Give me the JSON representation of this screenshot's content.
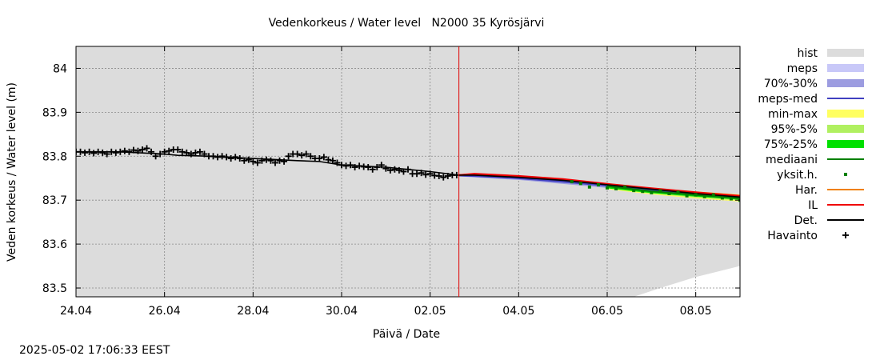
{
  "chart_data": {
    "type": "line",
    "title": "Vedenkorkeus / Water level   N2000 35 Kyrösjärvi",
    "xlabel": "Päivä / Date",
    "ylabel": "Veden korkeus / Water level (m)",
    "xlim_days": [
      0,
      15
    ],
    "ylim": [
      83.48,
      84.05
    ],
    "x_ticks": [
      {
        "day": 0,
        "label": "24.04"
      },
      {
        "day": 2,
        "label": "26.04"
      },
      {
        "day": 4,
        "label": "28.04"
      },
      {
        "day": 6,
        "label": "30.04"
      },
      {
        "day": 8,
        "label": "02.05"
      },
      {
        "day": 10,
        "label": "04.05"
      },
      {
        "day": 12,
        "label": "06.05"
      },
      {
        "day": 14,
        "label": "08.05"
      }
    ],
    "y_ticks": [
      {
        "value": 83.5,
        "label": "83.5"
      },
      {
        "value": 83.6,
        "label": "83.6"
      },
      {
        "value": 83.7,
        "label": "83.7"
      },
      {
        "value": 83.8,
        "label": "83.8"
      },
      {
        "value": 83.9,
        "label": "83.9"
      },
      {
        "value": 84.0,
        "label": "84"
      }
    ],
    "forecast_start_day": 8.65,
    "colors": {
      "hist": "#dcdcdc",
      "meps": "#c8c8f8",
      "p70_30": "#9c9ce0",
      "meps_med": "#4040c0",
      "min_max": "#ffff60",
      "p95_5": "#b0f060",
      "p75_25": "#00e000",
      "mediaani": "#008000",
      "yksit": "#008000",
      "har": "#f08000",
      "il": "#f00000",
      "det": "#000000",
      "havainto": "#000000",
      "now_line": "#e00000"
    },
    "legend": [
      {
        "key": "hist",
        "label": "hist",
        "style": "band"
      },
      {
        "key": "meps",
        "label": "meps",
        "style": "band"
      },
      {
        "key": "p70_30",
        "label": "70%-30%",
        "style": "band"
      },
      {
        "key": "meps_med",
        "label": "meps-med",
        "style": "line"
      },
      {
        "key": "min_max",
        "label": "min-max",
        "style": "band"
      },
      {
        "key": "p95_5",
        "label": "95%-5%",
        "style": "band"
      },
      {
        "key": "p75_25",
        "label": "75%-25%",
        "style": "band"
      },
      {
        "key": "mediaani",
        "label": "mediaani",
        "style": "line"
      },
      {
        "key": "yksit",
        "label": "yksit.h.",
        "style": "dot"
      },
      {
        "key": "har",
        "label": "Har.",
        "style": "line"
      },
      {
        "key": "il",
        "label": "IL",
        "style": "line"
      },
      {
        "key": "det",
        "label": "Det.",
        "style": "line"
      },
      {
        "key": "havainto",
        "label": "Havainto",
        "style": "plus"
      }
    ],
    "hist_lower_edge": [
      [
        0,
        83.48
      ],
      [
        12.6,
        83.48
      ],
      [
        13.2,
        83.5
      ],
      [
        14.0,
        83.525
      ],
      [
        15.0,
        83.55
      ]
    ],
    "series": [
      {
        "name": "Det.",
        "key": "det",
        "points": [
          [
            0,
            83.81
          ],
          [
            1,
            83.81
          ],
          [
            2,
            83.805
          ],
          [
            2.3,
            83.802
          ],
          [
            3,
            83.8
          ],
          [
            4,
            83.795
          ],
          [
            5,
            83.79
          ],
          [
            5.5,
            83.788
          ],
          [
            6,
            83.78
          ],
          [
            7,
            83.775
          ],
          [
            8,
            83.765
          ],
          [
            8.65,
            83.757
          ],
          [
            9,
            83.757
          ],
          [
            10,
            83.752
          ],
          [
            11,
            83.745
          ],
          [
            12,
            83.735
          ],
          [
            13,
            83.725
          ],
          [
            14,
            83.715
          ],
          [
            15,
            83.707
          ]
        ]
      },
      {
        "name": "IL",
        "key": "il",
        "points": [
          [
            8.65,
            83.757
          ],
          [
            9,
            83.76
          ],
          [
            10,
            83.755
          ],
          [
            11,
            83.748
          ],
          [
            12,
            83.737
          ],
          [
            13,
            83.727
          ],
          [
            14,
            83.718
          ],
          [
            15,
            83.71
          ]
        ]
      },
      {
        "name": "Har.",
        "key": "har",
        "points": [
          [
            8.65,
            83.757
          ],
          [
            9,
            83.759
          ],
          [
            10,
            83.753
          ],
          [
            11,
            83.746
          ],
          [
            12,
            83.736
          ],
          [
            13,
            83.726
          ],
          [
            14,
            83.716
          ],
          [
            15,
            83.708
          ]
        ]
      },
      {
        "name": "meps-med",
        "key": "meps_med",
        "points": [
          [
            8.65,
            83.756
          ],
          [
            9,
            83.755
          ],
          [
            10,
            83.75
          ],
          [
            11,
            83.742
          ],
          [
            12,
            83.733
          ],
          [
            13,
            83.723
          ],
          [
            14,
            83.714
          ],
          [
            15,
            83.706
          ]
        ]
      },
      {
        "name": "mediaani",
        "key": "mediaani",
        "points": [
          [
            12,
            83.732
          ],
          [
            13,
            83.72
          ],
          [
            14,
            83.712
          ],
          [
            15,
            83.704
          ]
        ]
      }
    ],
    "bands": [
      {
        "name": "70%-30%",
        "key": "p70_30",
        "upper": [
          [
            8.65,
            83.758
          ],
          [
            10,
            83.752
          ],
          [
            11,
            83.744
          ],
          [
            12,
            83.735
          ],
          [
            13,
            83.724
          ]
        ],
        "lower": [
          [
            8.65,
            83.754
          ],
          [
            10,
            83.746
          ],
          [
            11,
            83.737
          ],
          [
            12,
            83.728
          ],
          [
            13,
            83.718
          ]
        ]
      },
      {
        "name": "min-max",
        "key": "min_max",
        "upper": [
          [
            12,
            83.735
          ],
          [
            13,
            83.727
          ],
          [
            14,
            83.72
          ],
          [
            15,
            83.713
          ]
        ],
        "lower": [
          [
            12,
            83.725
          ],
          [
            13,
            83.713
          ],
          [
            14,
            83.704
          ],
          [
            15,
            83.697
          ]
        ]
      },
      {
        "name": "95%-5%",
        "key": "p95_5",
        "upper": [
          [
            12,
            83.733
          ],
          [
            13,
            83.724
          ],
          [
            14,
            83.717
          ],
          [
            15,
            83.71
          ]
        ],
        "lower": [
          [
            12,
            83.727
          ],
          [
            13,
            83.715
          ],
          [
            14,
            83.706
          ],
          [
            15,
            83.699
          ]
        ]
      },
      {
        "name": "75%-25%",
        "key": "p75_25",
        "upper": [
          [
            12,
            83.73
          ],
          [
            13,
            83.72
          ],
          [
            14,
            83.713
          ],
          [
            15,
            83.706
          ]
        ],
        "lower": [
          [
            12,
            83.727
          ],
          [
            13,
            83.716
          ],
          [
            14,
            83.708
          ],
          [
            15,
            83.701
          ]
        ]
      }
    ],
    "havainto_days": [
      0,
      0.1,
      0.2,
      0.3,
      0.4,
      0.5,
      0.6,
      0.7,
      0.8,
      0.9,
      1.0,
      1.1,
      1.2,
      1.3,
      1.4,
      1.5,
      1.6,
      1.7,
      1.8,
      1.9,
      2.0,
      2.1,
      2.2,
      2.3,
      2.4,
      2.5,
      2.6,
      2.7,
      2.8,
      2.9,
      3.0,
      3.1,
      3.2,
      3.3,
      3.4,
      3.5,
      3.6,
      3.7,
      3.8,
      3.9,
      4.0,
      4.1,
      4.2,
      4.3,
      4.4,
      4.5,
      4.6,
      4.7,
      4.8,
      4.9,
      5.0,
      5.1,
      5.2,
      5.3,
      5.4,
      5.5,
      5.6,
      5.7,
      5.8,
      5.9,
      6.0,
      6.1,
      6.2,
      6.3,
      6.4,
      6.5,
      6.6,
      6.7,
      6.8,
      6.9,
      7.0,
      7.1,
      7.2,
      7.3,
      7.4,
      7.5,
      7.6,
      7.7,
      7.8,
      7.9,
      8.0,
      8.1,
      8.2,
      8.3,
      8.4,
      8.5,
      8.6
    ],
    "havainto_values": [
      83.81,
      83.81,
      83.808,
      83.81,
      83.807,
      83.81,
      83.808,
      83.805,
      83.81,
      83.808,
      83.81,
      83.812,
      83.81,
      83.814,
      83.812,
      83.815,
      83.818,
      83.81,
      83.8,
      83.805,
      83.81,
      83.812,
      83.815,
      83.815,
      83.81,
      83.808,
      83.805,
      83.808,
      83.81,
      83.805,
      83.8,
      83.8,
      83.798,
      83.8,
      83.798,
      83.795,
      83.798,
      83.795,
      83.79,
      83.792,
      83.788,
      83.785,
      83.79,
      83.792,
      83.79,
      83.785,
      83.79,
      83.788,
      83.8,
      83.805,
      83.805,
      83.802,
      83.805,
      83.8,
      83.795,
      83.795,
      83.798,
      83.792,
      83.79,
      83.785,
      83.78,
      83.778,
      83.78,
      83.775,
      83.778,
      83.776,
      83.775,
      83.77,
      83.775,
      83.78,
      83.772,
      83.768,
      83.77,
      83.768,
      83.765,
      83.77,
      83.76,
      83.76,
      83.762,
      83.758,
      83.76,
      83.756,
      83.755,
      83.752,
      83.755,
      83.757,
      83.757
    ],
    "yksit_days": [
      11.2,
      11.4,
      11.6,
      11.8,
      12.0,
      12.2,
      12.4,
      12.6,
      12.8,
      13.0,
      13.2,
      13.4,
      13.6,
      13.8,
      14.0,
      14.2,
      14.4,
      14.6,
      14.8,
      15.0
    ],
    "yksit_values": [
      83.742,
      83.738,
      83.73,
      83.735,
      83.728,
      83.726,
      83.73,
      83.722,
      83.72,
      83.717,
      83.721,
      83.715,
      83.718,
      83.71,
      83.712,
      83.708,
      83.712,
      83.705,
      83.703,
      83.7
    ]
  },
  "footer": {
    "timestamp": "2025-05-02 17:06:33 EEST"
  }
}
